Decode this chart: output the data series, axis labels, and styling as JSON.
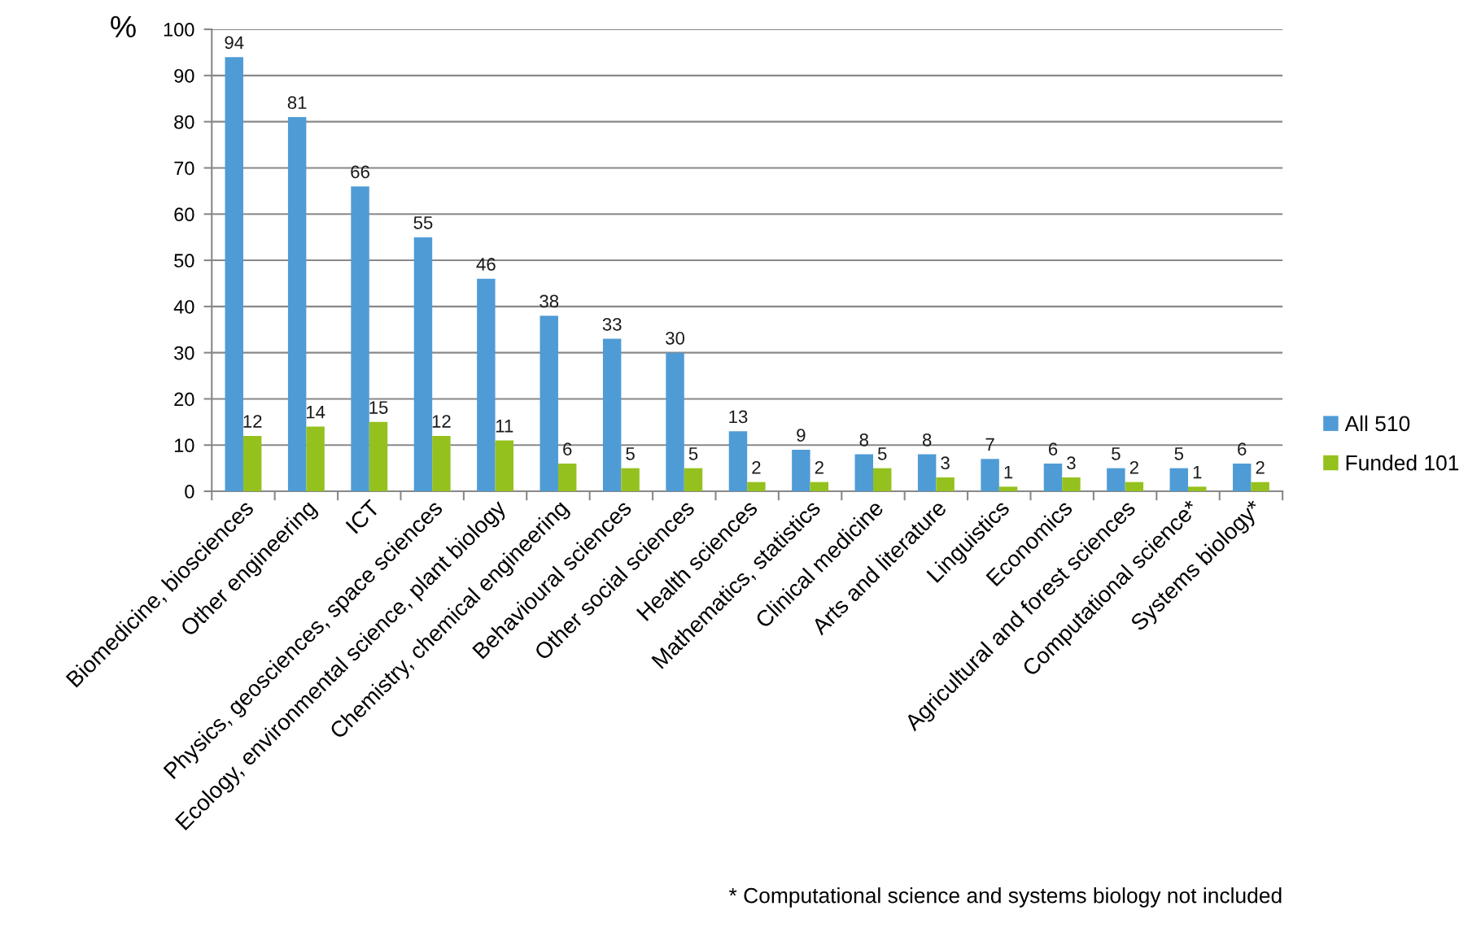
{
  "chart_data": {
    "type": "bar",
    "categories": [
      "Biomedicine, biosciences",
      "Other engineering",
      "ICT",
      "Physics, geosciences, space sciences",
      "Ecology, environmental science, plant biology",
      "Chemistry, chemical engineering",
      "Behavioural sciences",
      "Other social sciences",
      "Health sciences",
      "Mathematics, statistics",
      "Clinical medicine",
      "Arts and literature",
      "Linguistics",
      "Economics",
      "Agricultural and forest sciences",
      "Computational science*",
      "Systems biology*"
    ],
    "series": [
      {
        "name": "All 510",
        "color": "#4f9bd5",
        "values": [
          94,
          81,
          66,
          55,
          46,
          38,
          33,
          30,
          13,
          9,
          8,
          8,
          7,
          6,
          5,
          5,
          6
        ]
      },
      {
        "name": "Funded 101",
        "color": "#95c11f",
        "values": [
          12,
          14,
          15,
          12,
          11,
          6,
          5,
          5,
          2,
          2,
          5,
          3,
          1,
          3,
          2,
          1,
          2
        ]
      }
    ],
    "ylabel": "%",
    "ylim": [
      0,
      100
    ],
    "yticks": [
      0,
      10,
      20,
      30,
      40,
      50,
      60,
      70,
      80,
      90,
      100
    ],
    "grid": "y",
    "legend": "right",
    "data_labels": true,
    "annotations": [
      "* Computational science and systems biology not included"
    ]
  }
}
